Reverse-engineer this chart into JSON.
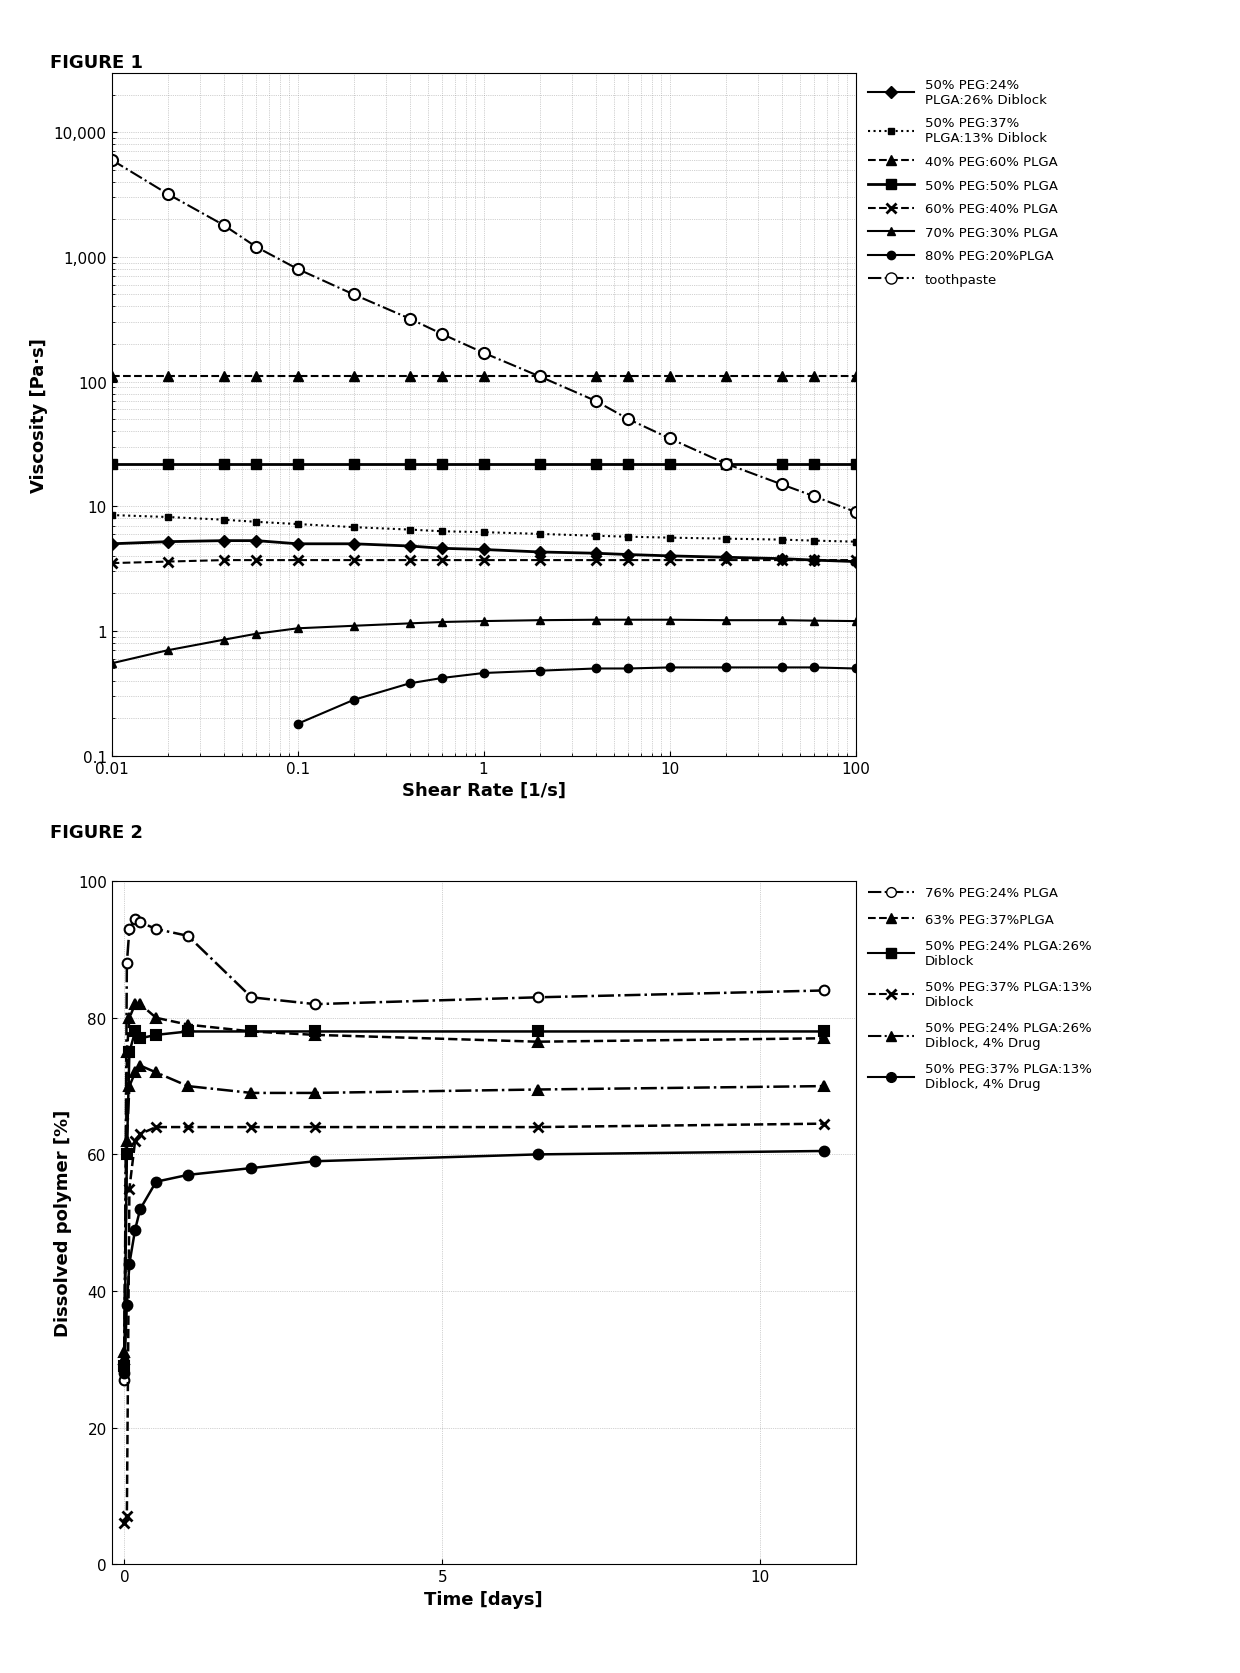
{
  "fig1_title": "FIGURE 1",
  "fig2_title": "FIGURE 2",
  "fig1_xlabel": "Shear Rate [1/s]",
  "fig1_ylabel": "Viscosity [Pa·s]",
  "fig2_xlabel": "Time [days]",
  "fig2_ylabel": "Dissolved polymer [%]",
  "series1": {
    "label": "50% PEG:24%\nPLGA:26% Diblock",
    "x": [
      0.01,
      0.02,
      0.04,
      0.06,
      0.1,
      0.2,
      0.4,
      0.6,
      1.0,
      2.0,
      4.0,
      6.0,
      10.0,
      20.0,
      40.0,
      60.0,
      100.0
    ],
    "y": [
      5.0,
      5.2,
      5.3,
      5.3,
      5.0,
      5.0,
      4.8,
      4.6,
      4.5,
      4.3,
      4.2,
      4.1,
      4.0,
      3.9,
      3.8,
      3.7,
      3.6
    ],
    "linestyle": "-",
    "marker": "D",
    "markersize": 6,
    "color": "black",
    "markerfacecolor": "black"
  },
  "series2": {
    "label": "50% PEG:37%\nPLGA:13% Diblock",
    "x": [
      0.01,
      0.02,
      0.04,
      0.06,
      0.1,
      0.2,
      0.4,
      0.6,
      1.0,
      2.0,
      4.0,
      6.0,
      10.0,
      20.0,
      40.0,
      60.0,
      100.0
    ],
    "y": [
      8.5,
      8.2,
      7.8,
      7.5,
      7.2,
      6.8,
      6.5,
      6.3,
      6.2,
      6.0,
      5.8,
      5.7,
      5.6,
      5.5,
      5.4,
      5.3,
      5.2
    ],
    "linestyle": ":",
    "marker": "s",
    "markersize": 5,
    "color": "black",
    "markerfacecolor": "black"
  },
  "series3": {
    "label": "40% PEG:60% PLGA",
    "x": [
      0.01,
      0.02,
      0.04,
      0.06,
      0.1,
      0.2,
      0.4,
      0.6,
      1.0,
      2.0,
      4.0,
      6.0,
      10.0,
      20.0,
      40.0,
      60.0,
      100.0
    ],
    "y": [
      110,
      110,
      110,
      110,
      110,
      110,
      110,
      110,
      110,
      110,
      110,
      110,
      110,
      110,
      110,
      110,
      110
    ],
    "linestyle": "--",
    "marker": "^",
    "markersize": 7,
    "color": "black",
    "markerfacecolor": "black"
  },
  "series4": {
    "label": "50% PEG:50% PLGA",
    "x": [
      0.01,
      0.02,
      0.04,
      0.06,
      0.1,
      0.2,
      0.4,
      0.6,
      1.0,
      2.0,
      4.0,
      6.0,
      10.0,
      20.0,
      40.0,
      60.0,
      100.0
    ],
    "y": [
      22,
      22,
      22,
      22,
      22,
      22,
      22,
      22,
      22,
      22,
      22,
      22,
      22,
      22,
      22,
      22,
      22
    ],
    "linestyle": "-",
    "marker": "s",
    "markersize": 7,
    "color": "black",
    "markerfacecolor": "black"
  },
  "series5": {
    "label": "60% PEG:40% PLGA",
    "x": [
      0.01,
      0.02,
      0.04,
      0.06,
      0.1,
      0.2,
      0.4,
      0.6,
      1.0,
      2.0,
      4.0,
      6.0,
      10.0,
      20.0,
      40.0,
      60.0,
      100.0
    ],
    "y": [
      3.5,
      3.6,
      3.7,
      3.7,
      3.7,
      3.7,
      3.7,
      3.7,
      3.7,
      3.7,
      3.7,
      3.7,
      3.7,
      3.7,
      3.7,
      3.7,
      3.7
    ],
    "linestyle": "--",
    "marker": "x",
    "markersize": 7,
    "color": "black",
    "markerfacecolor": "black"
  },
  "series6": {
    "label": "70% PEG:30% PLGA",
    "x": [
      0.01,
      0.02,
      0.04,
      0.06,
      0.1,
      0.2,
      0.4,
      0.6,
      1.0,
      2.0,
      4.0,
      6.0,
      10.0,
      20.0,
      40.0,
      60.0,
      100.0
    ],
    "y": [
      0.55,
      0.7,
      0.85,
      0.95,
      1.05,
      1.1,
      1.15,
      1.18,
      1.2,
      1.22,
      1.23,
      1.23,
      1.23,
      1.22,
      1.22,
      1.21,
      1.2
    ],
    "linestyle": "-",
    "marker": "^",
    "markersize": 6,
    "color": "black",
    "markerfacecolor": "black"
  },
  "series7": {
    "label": "80% PEG:20%PLGA",
    "x": [
      0.1,
      0.2,
      0.4,
      0.6,
      1.0,
      2.0,
      4.0,
      6.0,
      10.0,
      20.0,
      40.0,
      60.0,
      100.0
    ],
    "y": [
      0.18,
      0.28,
      0.38,
      0.42,
      0.46,
      0.48,
      0.5,
      0.5,
      0.51,
      0.51,
      0.51,
      0.51,
      0.5
    ],
    "linestyle": "-",
    "marker": "o",
    "markersize": 6,
    "color": "black",
    "markerfacecolor": "black"
  },
  "series8": {
    "label": "toothpaste",
    "x": [
      0.01,
      0.02,
      0.04,
      0.06,
      0.1,
      0.2,
      0.4,
      0.6,
      1.0,
      2.0,
      4.0,
      6.0,
      10.0,
      20.0,
      40.0,
      60.0,
      100.0
    ],
    "y": [
      6000,
      3200,
      1800,
      1200,
      800,
      500,
      320,
      240,
      170,
      110,
      70,
      50,
      35,
      22,
      15,
      12,
      9
    ],
    "linestyle": "-.",
    "marker": "o",
    "markersize": 8,
    "color": "black",
    "markerfacecolor": "white"
  },
  "fig2_series": [
    {
      "label": "76% PEG:24% PLGA",
      "x": [
        0.0,
        0.04,
        0.08,
        0.17,
        0.25,
        0.5,
        1.0,
        2.0,
        3.0,
        6.5,
        11.0
      ],
      "y": [
        27.0,
        88.0,
        93.0,
        94.5,
        94.0,
        93.0,
        92.0,
        83.0,
        82.0,
        83.0,
        84.0
      ],
      "linestyle": "-.",
      "marker": "o",
      "markersize": 7,
      "color": "black",
      "markerfacecolor": "white"
    },
    {
      "label": "63% PEG:37%PLGA",
      "x": [
        0.0,
        0.04,
        0.08,
        0.17,
        0.25,
        0.5,
        1.0,
        2.0,
        3.0,
        6.5,
        11.0
      ],
      "y": [
        30.0,
        75.0,
        80.0,
        82.0,
        82.0,
        80.0,
        79.0,
        78.0,
        77.5,
        76.5,
        77.0
      ],
      "linestyle": "--",
      "marker": "^",
      "markersize": 7,
      "color": "black",
      "markerfacecolor": "black"
    },
    {
      "label": "50% PEG:24% PLGA:26%\nDiblock",
      "x": [
        0.0,
        0.04,
        0.08,
        0.17,
        0.25,
        0.5,
        1.0,
        2.0,
        3.0,
        6.5,
        11.0
      ],
      "y": [
        29.0,
        60.0,
        75.0,
        78.0,
        77.0,
        77.5,
        78.0,
        78.0,
        78.0,
        78.0,
        78.0
      ],
      "linestyle": "-",
      "marker": "s",
      "markersize": 7,
      "color": "black",
      "markerfacecolor": "black"
    },
    {
      "label": "50% PEG:37% PLGA:13%\nDiblock",
      "x": [
        0.0,
        0.04,
        0.08,
        0.17,
        0.25,
        0.5,
        1.0,
        2.0,
        3.0,
        6.5,
        11.0
      ],
      "y": [
        6.0,
        7.0,
        55.0,
        62.0,
        63.0,
        64.0,
        64.0,
        64.0,
        64.0,
        64.0,
        64.5
      ],
      "linestyle": "--",
      "marker": "x",
      "markersize": 7,
      "color": "black",
      "markerfacecolor": "black"
    },
    {
      "label": "50% PEG:24% PLGA:26%\nDiblock, 4% Drug",
      "x": [
        0.0,
        0.04,
        0.08,
        0.17,
        0.25,
        0.5,
        1.0,
        2.0,
        3.0,
        6.5,
        11.0
      ],
      "y": [
        31.0,
        62.0,
        70.0,
        72.0,
        73.0,
        72.0,
        70.0,
        69.0,
        69.0,
        69.5,
        70.0
      ],
      "linestyle": "-.",
      "marker": "^",
      "markersize": 7,
      "color": "black",
      "markerfacecolor": "black"
    },
    {
      "label": "50% PEG:37% PLGA:13%\nDiblock, 4% Drug",
      "x": [
        0.0,
        0.04,
        0.08,
        0.17,
        0.25,
        0.5,
        1.0,
        2.0,
        3.0,
        6.5,
        11.0
      ],
      "y": [
        28.0,
        38.0,
        44.0,
        49.0,
        52.0,
        56.0,
        57.0,
        58.0,
        59.0,
        60.0,
        60.5
      ],
      "linestyle": "-",
      "marker": "o",
      "markersize": 7,
      "color": "black",
      "markerfacecolor": "black"
    }
  ]
}
